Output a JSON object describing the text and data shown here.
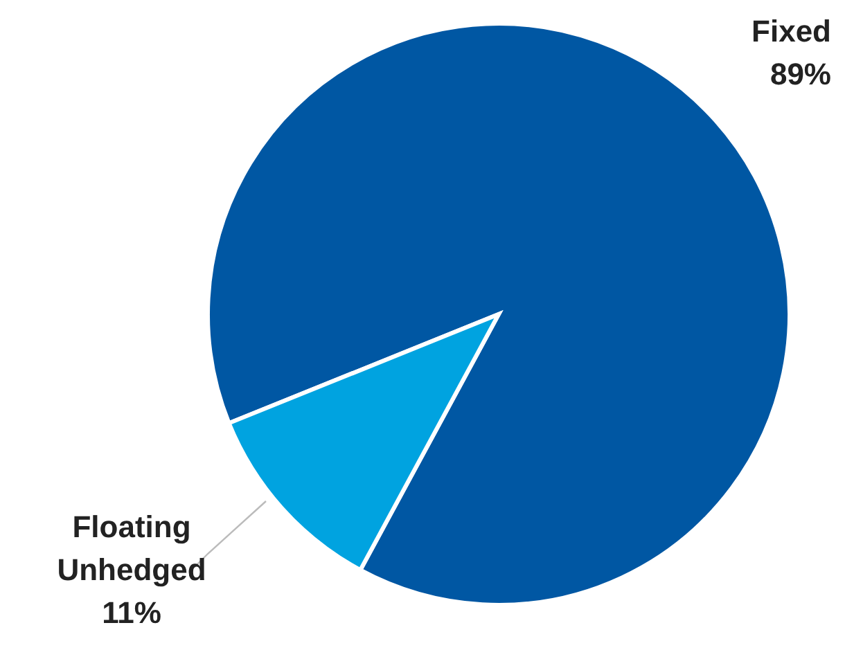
{
  "chart_data": {
    "type": "pie",
    "categories": [
      "Fixed",
      "Floating Unhedged"
    ],
    "values": [
      89,
      11
    ],
    "colors": [
      "#0057a3",
      "#00a3e0"
    ],
    "value_labels": [
      "89%",
      "11%"
    ]
  }
}
